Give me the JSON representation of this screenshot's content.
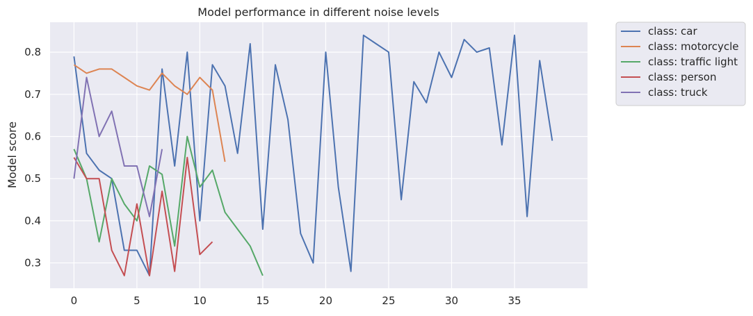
{
  "chart_data": {
    "type": "line",
    "title": "Model performance in different noise levels",
    "xlabel": "",
    "ylabel": "Model score",
    "xlim": [
      -1.9,
      40.8
    ],
    "ylim": [
      0.24,
      0.871
    ],
    "xticks": [
      0,
      5,
      10,
      15,
      20,
      25,
      30,
      35
    ],
    "yticks": [
      0.3,
      0.4,
      0.5,
      0.6,
      0.7,
      0.8
    ],
    "grid": true,
    "legend_position": "outside-top-right",
    "series": [
      {
        "name": "class: car",
        "color": "#4c72b0",
        "x": [
          0,
          1,
          2,
          3,
          4,
          5,
          6,
          7,
          8,
          9,
          10,
          11,
          12,
          13,
          14,
          15,
          16,
          17,
          18,
          19,
          20,
          21,
          22,
          23,
          24,
          25,
          26,
          27,
          28,
          29,
          30,
          31,
          32,
          33,
          34,
          35,
          36,
          37,
          38
        ],
        "values": [
          0.79,
          0.56,
          0.52,
          0.5,
          0.33,
          0.33,
          0.27,
          0.76,
          0.53,
          0.8,
          0.4,
          0.77,
          0.72,
          0.56,
          0.82,
          0.38,
          0.77,
          0.64,
          0.37,
          0.3,
          0.8,
          0.48,
          0.28,
          0.84,
          0.82,
          0.8,
          0.45,
          0.73,
          0.68,
          0.8,
          0.74,
          0.83,
          0.8,
          0.81,
          0.58,
          0.84,
          0.41,
          0.78,
          0.59
        ]
      },
      {
        "name": "class: motorcycle",
        "color": "#dd8452",
        "x": [
          0,
          1,
          2,
          3,
          4,
          5,
          6,
          7,
          8,
          9,
          10,
          11,
          12
        ],
        "values": [
          0.77,
          0.75,
          0.76,
          0.76,
          0.74,
          0.72,
          0.71,
          0.75,
          0.72,
          0.7,
          0.74,
          0.71,
          0.54
        ]
      },
      {
        "name": "class: traffic light",
        "color": "#55a868",
        "x": [
          0,
          1,
          2,
          3,
          4,
          5,
          6,
          7,
          8,
          9,
          10,
          11,
          12,
          13,
          14,
          15
        ],
        "values": [
          0.57,
          0.5,
          0.35,
          0.5,
          0.44,
          0.4,
          0.53,
          0.51,
          0.34,
          0.6,
          0.48,
          0.52,
          0.42,
          0.38,
          0.34,
          0.27
        ]
      },
      {
        "name": "class: person",
        "color": "#c44e52",
        "x": [
          0,
          1,
          2,
          3,
          4,
          5,
          6,
          7,
          8,
          9,
          10,
          11
        ],
        "values": [
          0.55,
          0.5,
          0.5,
          0.33,
          0.27,
          0.44,
          0.27,
          0.47,
          0.28,
          0.55,
          0.32,
          0.35
        ]
      },
      {
        "name": "class: truck",
        "color": "#8172b3",
        "x": [
          0,
          1,
          2,
          3,
          4,
          5,
          6,
          7
        ],
        "values": [
          0.5,
          0.74,
          0.6,
          0.66,
          0.53,
          0.53,
          0.41,
          0.57
        ]
      }
    ]
  },
  "style": {
    "plot_background": "#eaeaf2",
    "grid_color": "#ffffff",
    "text_color": "#262626"
  }
}
